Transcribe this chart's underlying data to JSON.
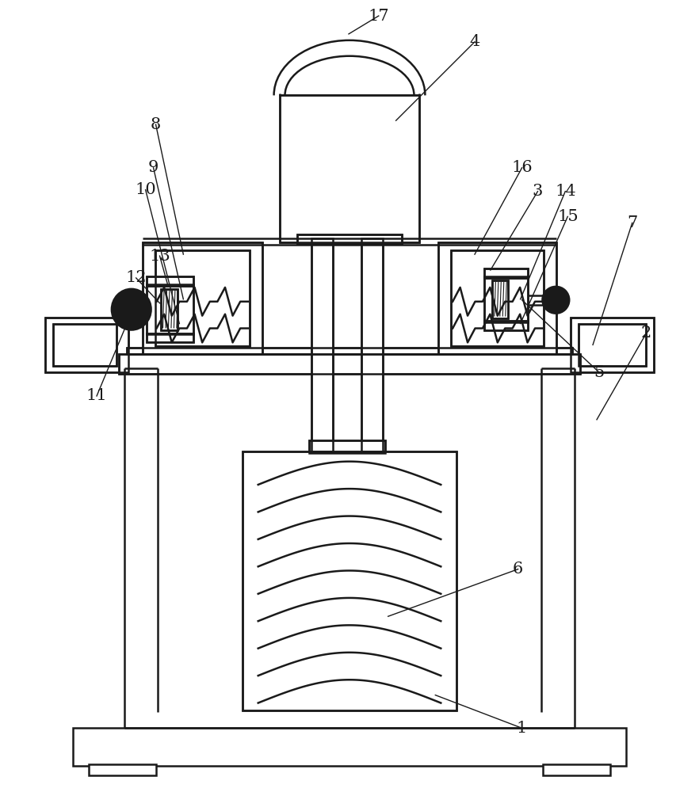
{
  "bg": "#ffffff",
  "lc": "#1a1a1a",
  "lw": 1.8,
  "lwt": 1.0,
  "fs": 15
}
